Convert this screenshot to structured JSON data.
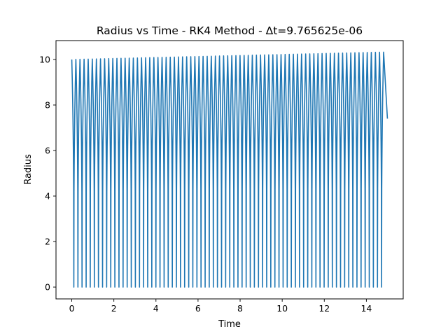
{
  "chart_data": {
    "type": "line",
    "title": "Radius vs Time - RK4 Method - Δt=9.765625e-06",
    "xlabel": "Time",
    "ylabel": "Radius",
    "xlim": [
      -0.75,
      15.75
    ],
    "ylim": [
      -0.52,
      10.83
    ],
    "x_ticks": [
      0,
      2,
      4,
      6,
      8,
      10,
      12,
      14
    ],
    "y_ticks": [
      0,
      2,
      4,
      6,
      8,
      10
    ],
    "grid": false,
    "legend": "none",
    "series": [
      {
        "color": "#1f77b4",
        "t_start": 0,
        "t_end": 15.0,
        "period": 0.195,
        "r_max_start": 10.0,
        "r_max_end": 10.33,
        "r_min": 0.0,
        "r_final": 7.4,
        "description": "Radius oscillates between ~0 and ~10 with 77 cycles; peak amplitude slowly grows from 10.0 to ~10.33 by t=15"
      }
    ]
  }
}
